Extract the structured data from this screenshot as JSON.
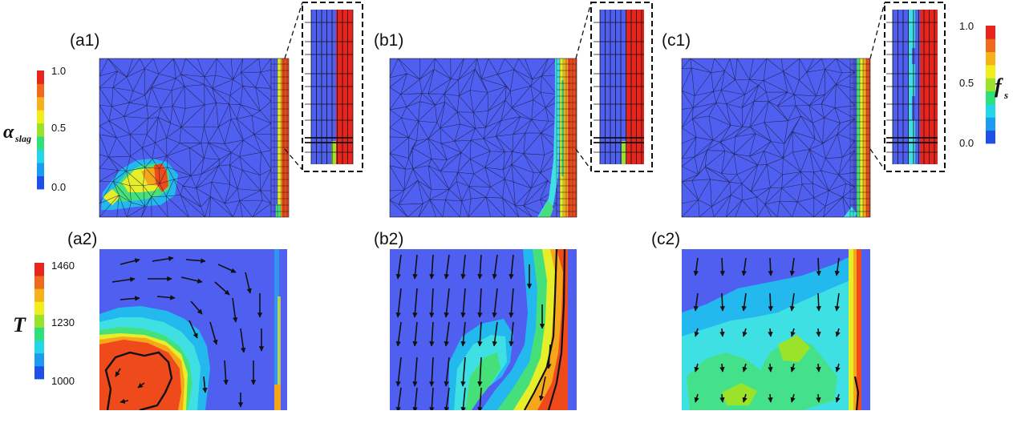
{
  "panels": [
    {
      "id": "a1",
      "label": "(a1)"
    },
    {
      "id": "b1",
      "label": "(b1)"
    },
    {
      "id": "c1",
      "label": "(c1)"
    },
    {
      "id": "a2",
      "label": "(a2)"
    },
    {
      "id": "b2",
      "label": "(b2)"
    },
    {
      "id": "c2",
      "label": "(c2)"
    }
  ],
  "colorbar_alpha": {
    "symbol": "α",
    "subscript": "slag",
    "ticks": [
      "1.0",
      "0.5",
      "0.0"
    ],
    "colors": [
      "#1f4ee8",
      "#1a9cf2",
      "#23d7e8",
      "#2fe07a",
      "#9be22a",
      "#f2ee1c",
      "#f5b21a",
      "#ef6a1c",
      "#e8241c"
    ]
  },
  "colorbar_fs": {
    "symbol": "f",
    "subscript": "s",
    "ticks": [
      "1.0",
      "0.5",
      "0.0"
    ],
    "colors": [
      "#1f4ee8",
      "#1a9cf2",
      "#23d7e8",
      "#2fe07a",
      "#9be22a",
      "#f2ee1c",
      "#f5b21a",
      "#ef6a1c",
      "#e8241c"
    ]
  },
  "colorbar_T": {
    "symbol": "T",
    "ticks": [
      "1460",
      "1230",
      "1000"
    ],
    "colors": [
      "#1f4ee8",
      "#1a9cf2",
      "#23d7e8",
      "#2fe07a",
      "#9be22a",
      "#f2ee1c",
      "#f5b21a",
      "#ef6a1c",
      "#e8241c"
    ]
  },
  "palette": {
    "blue": "#4f5ff0",
    "light_blue": "#23b9ee",
    "cyan": "#3fe0e4",
    "green": "#46e07a",
    "yellow": "#e6ee2a",
    "orange": "#f5a61a",
    "red": "#ee4a1c",
    "mesh": "#1a1a3a"
  }
}
